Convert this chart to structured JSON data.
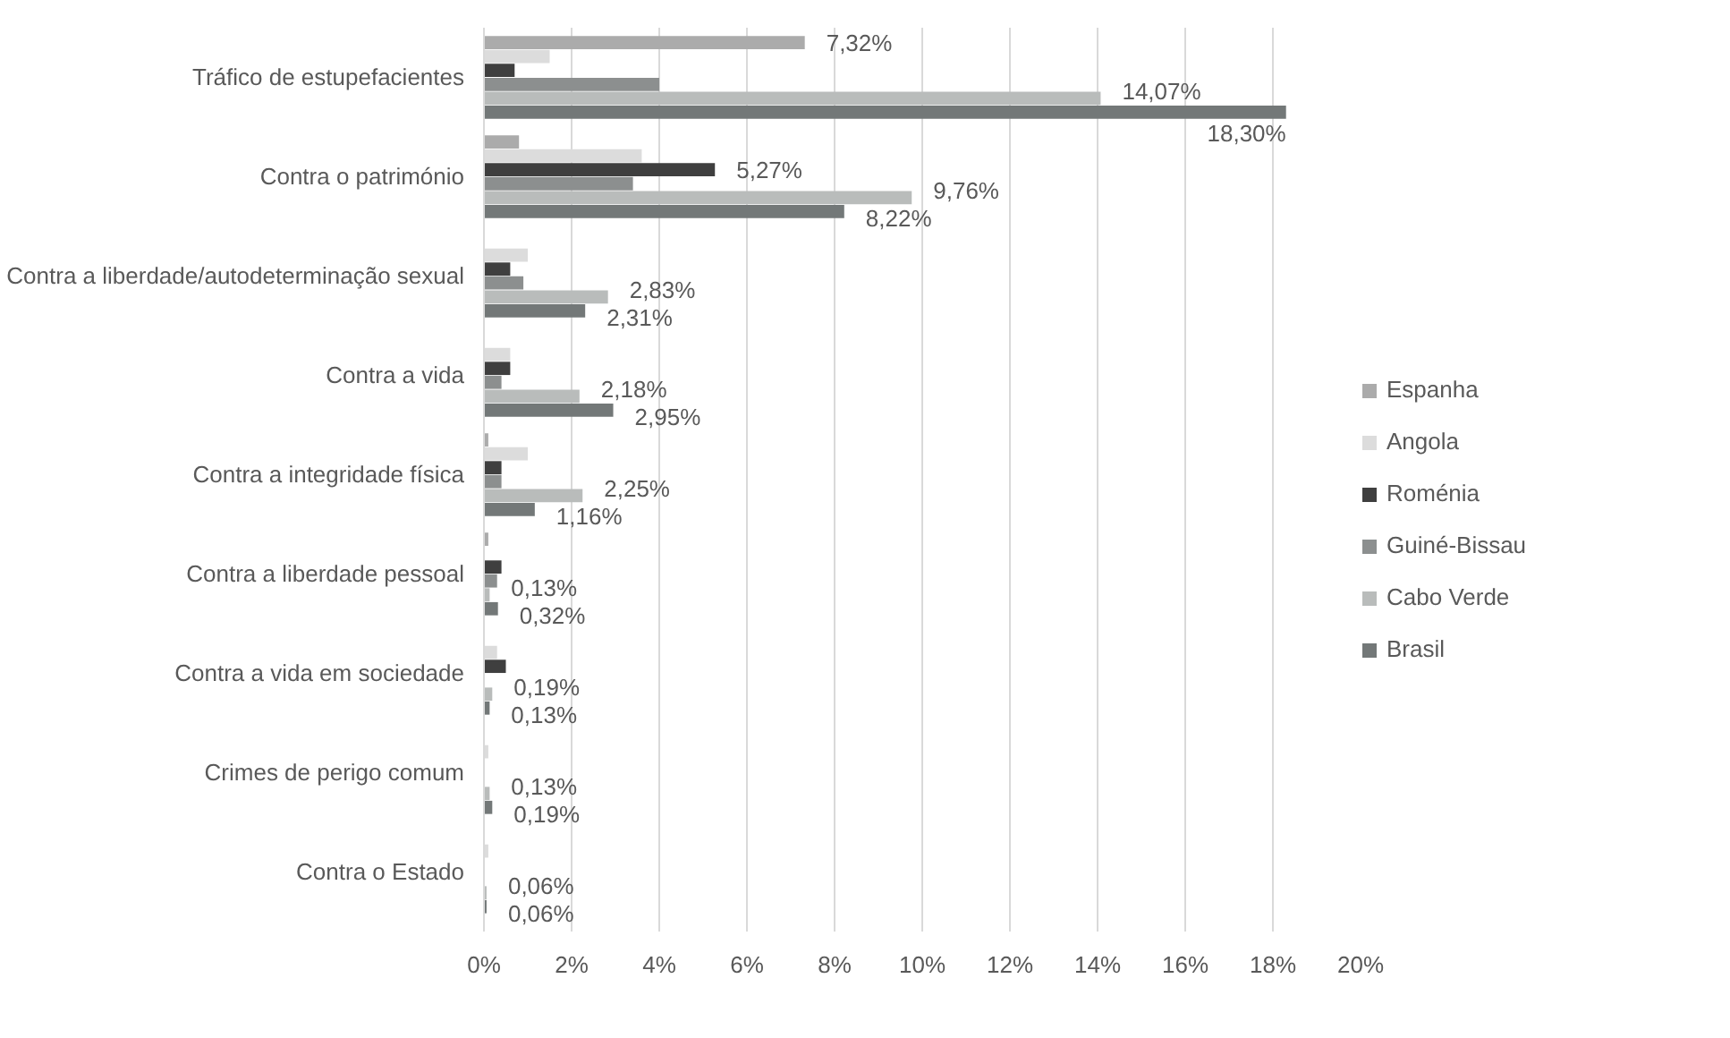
{
  "chart_data": {
    "type": "bar",
    "orientation": "horizontal",
    "categories": [
      "Tráfico de estupefacientes",
      "Contra o património",
      "Contra a liberdade/autodeterminação sexual",
      "Contra a vida",
      "Contra a integridade física",
      "Contra a liberdade pessoal",
      "Contra a vida em sociedade",
      "Crimes de perigo comum",
      "Contra o Estado"
    ],
    "series": [
      {
        "name": "Espanha",
        "color": "#ababab",
        "values": [
          7.32,
          0.8,
          0,
          0,
          0.1,
          0.1,
          0,
          0,
          0
        ],
        "value_labels": [
          "7,32%",
          null,
          null,
          null,
          null,
          null,
          null,
          null,
          null
        ]
      },
      {
        "name": "Angola",
        "color": "#dcdcdc",
        "values": [
          1.5,
          3.6,
          1.0,
          0.6,
          1.0,
          0,
          0.3,
          0.1,
          0.1
        ],
        "value_labels": [
          null,
          null,
          null,
          null,
          null,
          null,
          null,
          null,
          null
        ]
      },
      {
        "name": "Roménia",
        "color": "#3f3f3f",
        "values": [
          0.7,
          5.27,
          0.6,
          0.6,
          0.4,
          0.4,
          0.5,
          0,
          0
        ],
        "value_labels": [
          null,
          "5,27%",
          null,
          null,
          null,
          null,
          null,
          null,
          null
        ]
      },
      {
        "name": "Guiné-Bissau",
        "color": "#8c8f8f",
        "values": [
          4.0,
          3.4,
          0.9,
          0.4,
          0.4,
          0.3,
          null,
          0,
          0
        ],
        "value_labels": [
          null,
          null,
          null,
          null,
          null,
          null,
          null,
          null,
          null
        ]
      },
      {
        "name": "Cabo Verde",
        "color": "#b9bcbb",
        "values": [
          14.07,
          9.76,
          2.83,
          2.18,
          2.25,
          0.13,
          0.19,
          0.13,
          0.06
        ],
        "value_labels": [
          "14,07%",
          "9,76%",
          "2,83%",
          "2,18%",
          "2,25%",
          "0,13%",
          "0,19%",
          "0,13%",
          "0,06%"
        ]
      },
      {
        "name": "Brasil",
        "color": "#737878",
        "values": [
          18.3,
          8.22,
          2.31,
          2.95,
          1.16,
          0.32,
          0.13,
          0.19,
          0.06
        ],
        "value_labels": [
          "18,30%",
          "8,22%",
          "2,31%",
          "2,95%",
          "1,16%",
          "0,32%",
          "0,13%",
          "0,19%",
          "0,06%"
        ]
      }
    ],
    "xlim": [
      0,
      20
    ],
    "xticks": [
      {
        "value": 0,
        "label": "0%"
      },
      {
        "value": 2,
        "label": "2%"
      },
      {
        "value": 4,
        "label": "4%"
      },
      {
        "value": 6,
        "label": "6%"
      },
      {
        "value": 8,
        "label": "8%"
      },
      {
        "value": 10,
        "label": "10%"
      },
      {
        "value": 12,
        "label": "12%"
      },
      {
        "value": 14,
        "label": "14%"
      },
      {
        "value": 16,
        "label": "16%"
      },
      {
        "value": 18,
        "label": "18%"
      },
      {
        "value": 20,
        "label": "20%"
      }
    ],
    "grid": "x",
    "legend": "right"
  }
}
